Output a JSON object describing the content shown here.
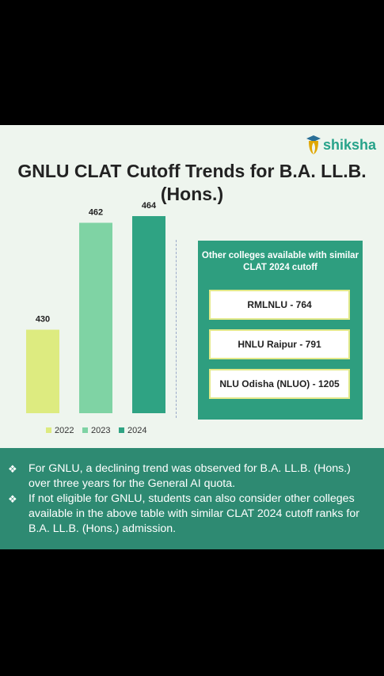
{
  "brand": {
    "name": "shiksha"
  },
  "title": "GNLU CLAT Cutoff Trends for B.A. LL.B. (Hons.)",
  "chart_data": {
    "type": "bar",
    "categories": [
      "2022",
      "2023",
      "2024"
    ],
    "values": [
      430,
      462,
      464
    ],
    "colors": [
      "#ddeb80",
      "#7fd3a4",
      "#2fa383"
    ],
    "legend": [
      "2022",
      "2023",
      "2024"
    ],
    "legend_position": "bottom",
    "grid": false,
    "xlabel": "",
    "ylabel": ""
  },
  "colleges_panel": {
    "heading": "Other colleges available with similar CLAT 2024 cutoff",
    "items": [
      "RMLNLU - 764",
      "HNLU Raipur - 791",
      "NLU Odisha (NLUO) - 1205"
    ]
  },
  "notes": [
    "For GNLU, a declining trend was observed for B.A. LL.B. (Hons.) over three years for the General AI quota.",
    "If not eligible for GNLU, students can also consider other colleges available in the above table with similar CLAT 2024 cutoff ranks for B.A. LL.B. (Hons.) admission."
  ],
  "colors": {
    "panel": "#2e9e7f",
    "info_band": "#2e8a72",
    "background": "#eef5ee"
  }
}
